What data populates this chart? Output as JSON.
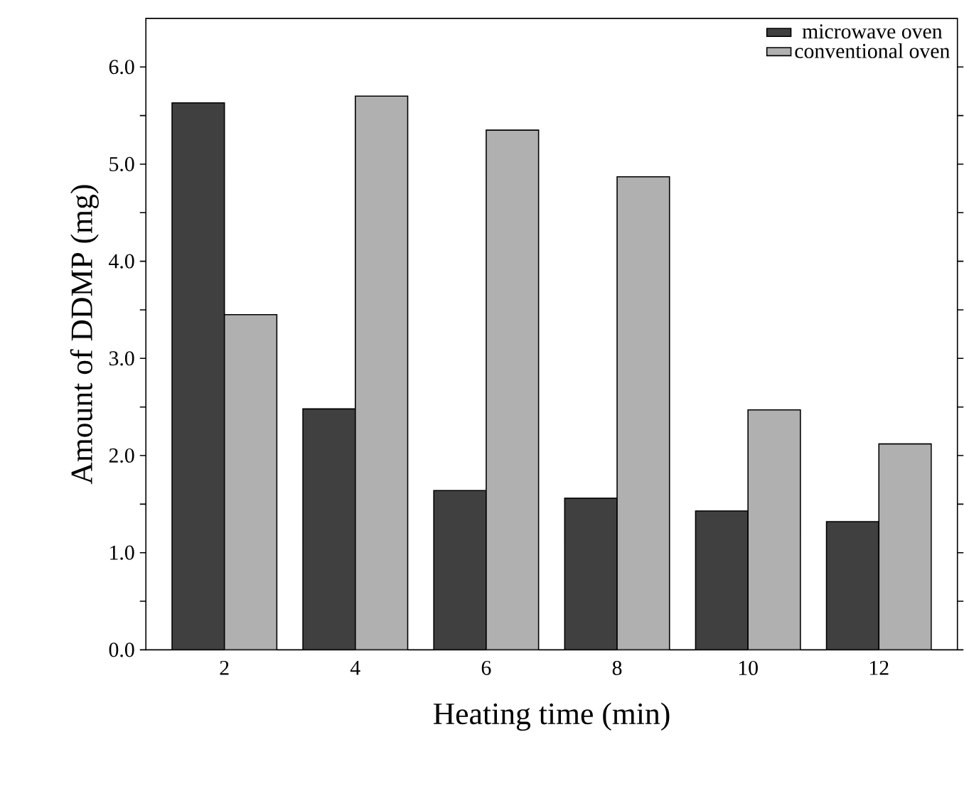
{
  "chart_data": {
    "type": "bar",
    "xlabel": "Heating time (min)",
    "ylabel": "Amount of DDMP (mg)",
    "categories": [
      "2",
      "4",
      "6",
      "8",
      "10",
      "12"
    ],
    "series": [
      {
        "name": "microwave oven",
        "color": "#404040",
        "values": [
          5.63,
          2.48,
          1.64,
          1.56,
          1.43,
          1.32
        ]
      },
      {
        "name": "conventional oven",
        "color": "#b0b0b0",
        "values": [
          3.45,
          5.7,
          5.35,
          4.87,
          2.47,
          2.12
        ]
      }
    ],
    "ylim": [
      0,
      6.5
    ],
    "yticks": [
      {
        "value": 0,
        "label": "0.0"
      },
      {
        "value": 0.5,
        "label": null
      },
      {
        "value": 1,
        "label": "1.0"
      },
      {
        "value": 1.5,
        "label": null
      },
      {
        "value": 2,
        "label": "2.0"
      },
      {
        "value": 2.5,
        "label": null
      },
      {
        "value": 3,
        "label": "3.0"
      },
      {
        "value": 3.5,
        "label": null
      },
      {
        "value": 4,
        "label": "4.0"
      },
      {
        "value": 4.5,
        "label": null
      },
      {
        "value": 5,
        "label": "5.0"
      },
      {
        "value": 5.5,
        "label": null
      },
      {
        "value": 6,
        "label": "6.0"
      }
    ],
    "legend": "top right",
    "grid": false
  }
}
